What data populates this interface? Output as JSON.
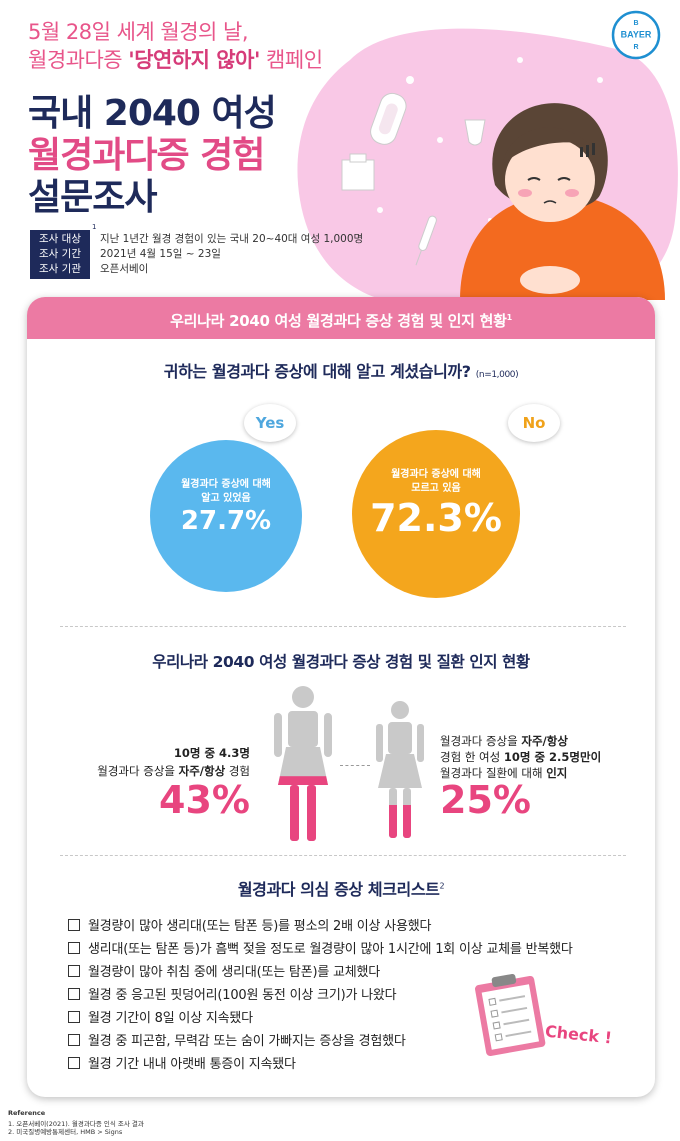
{
  "header": {
    "subtitle_line1": "5월 28일 세계 월경의 날,",
    "subtitle_line2_prefix": "월경과다증 ",
    "subtitle_line2_highlight": "'당연하지 않아'",
    "subtitle_line2_suffix": " 캠페인",
    "title_line1": "국내 2040 여성",
    "title_line2": "월경과다증 경험",
    "title_line3": "설문조사",
    "logo_top": "B",
    "logo_mid": "BAYER",
    "logo_bottom": "R",
    "logo_color": "#1e8fd1"
  },
  "survey_info": {
    "footnote_mark": "1",
    "rows": [
      {
        "label": "조사 대상",
        "value": "지난 1년간 월경 경험이 있는 국내 20~40대 여성 1,000명"
      },
      {
        "label": "조사 기간",
        "value": "2021년 4월 15일 ~ 23일"
      },
      {
        "label": "조사 기관",
        "value": "오픈서베이"
      }
    ]
  },
  "banner": {
    "text": "우리나라 2040 여성 월경과다 증상 경험 및 인지 현황",
    "sup": "1",
    "color": "#ec7aa3"
  },
  "awareness": {
    "question": "귀하는 월경과다 증상에 대해 알고 계셨습니까?",
    "n_label": "(n=1,000)",
    "yes": {
      "bubble": "Yes",
      "desc_line1": "월경과다 증상에 대해",
      "desc_line2": "알고 있었음",
      "value": "27.7%",
      "color": "#5ab8ee"
    },
    "no": {
      "bubble": "No",
      "desc_line1": "월경과다 증상에 대해",
      "desc_line2": "모르고 있음",
      "value": "72.3%",
      "color": "#f4a61d"
    }
  },
  "experience": {
    "title": "우리나라 2040 여성 월경과다 증상 경험 및 질환 인지 현황",
    "left": {
      "line1": "10명 중 4.3명",
      "line2_prefix": "월경과다 증상을 ",
      "line2_bold": "자주/항상",
      "line2_suffix": " 경험",
      "value": "43%",
      "fill_fraction": 0.43
    },
    "right": {
      "line1_prefix": "월경과다 증상을 ",
      "line1_bold": "자주/항상",
      "line2_prefix": "경험 한 여성 ",
      "line2_bold": "10명 중 2.5명만이",
      "line3_prefix": "월경과다 질환에 대해 ",
      "line3_bold": "인지",
      "value": "25%",
      "fill_fraction": 0.25
    },
    "accent_color": "#e8457f"
  },
  "checklist": {
    "title": "월경과다 의심 증상 체크리스트",
    "sup": "2",
    "items": [
      "월경량이 많아 생리대(또는 탐폰 등)를 평소의 2배 이상 사용했다",
      "생리대(또는 탐폰 등)가 흠뻑 젖을 정도로 월경량이 많아 1시간에 1회 이상 교체를 반복했다",
      "월경량이 많아 취침 중에 생리대(또는 탐폰)를 교체했다",
      "월경 중 응고된 핏덩어리(100원 동전 이상 크기)가 나왔다",
      "월경 기간이 8일 이상 지속됐다",
      "월경 중 피곤함, 무력감 또는 숨이 가빠지는 증상을 경험했다",
      "월경 기간 내내 아랫배 통증이 지속됐다"
    ],
    "clipboard_text": "Check !"
  },
  "reference": {
    "heading": "Reference",
    "items": [
      "1. 오픈서베이(2021). 월경과다증 인식 조사 결과",
      "2. 미국질병예방통제센터, HMB > Signs"
    ]
  }
}
